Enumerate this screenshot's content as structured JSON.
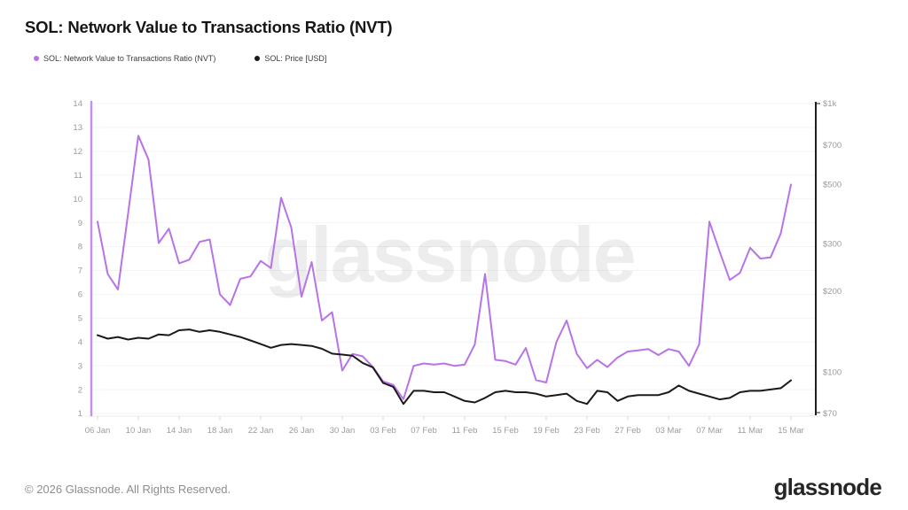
{
  "header": {
    "title": "SOL: Network Value to Transactions Ratio (NVT)"
  },
  "legend": {
    "items": [
      {
        "label": "SOL: Network Value to Transactions Ratio (NVT)",
        "color": "#b873e6"
      },
      {
        "label": "SOL: Price [USD]",
        "color": "#1a1a1a"
      }
    ]
  },
  "watermark": "glassnode",
  "footer": {
    "copyright": "© 2026 Glassnode. All Rights Reserved.",
    "brand": "glassnode"
  },
  "chart_data": {
    "type": "line",
    "title": "SOL: Network Value to Transactions Ratio (NVT)",
    "frequency": "daily",
    "date_range": "06 Jan – 15 Mar",
    "grid": "horizontal",
    "legend_position": "top-left",
    "x_tick_labels": [
      "06 Jan",
      "10 Jan",
      "14 Jan",
      "18 Jan",
      "22 Jan",
      "26 Jan",
      "30 Jan",
      "03 Feb",
      "07 Feb",
      "11 Feb",
      "15 Feb",
      "19 Feb",
      "23 Feb",
      "27 Feb",
      "03 Mar",
      "07 Mar",
      "11 Mar",
      "15 Mar"
    ],
    "x_tick_every_n_points": 4,
    "left_axis": {
      "scale": "linear",
      "min": 1,
      "max": 14,
      "tick_values": [
        1,
        2,
        3,
        4,
        5,
        6,
        7,
        8,
        9,
        10,
        11,
        12,
        13,
        14
      ],
      "color": "#c88fe9"
    },
    "right_axis": {
      "scale": "log",
      "min": 70,
      "max": 1000,
      "tick_labels": [
        "$1k",
        "$700",
        "$500",
        "$300",
        "$200",
        "$100",
        "$70"
      ],
      "tick_values": [
        1000,
        700,
        500,
        300,
        200,
        100,
        70
      ],
      "color": "#1f1f1f"
    },
    "series": [
      {
        "name": "SOL: Network Value to Transactions Ratio (NVT)",
        "axis": "left",
        "color": "#b873e6",
        "values": [
          9.05,
          6.85,
          6.2,
          9.4,
          12.65,
          11.65,
          8.15,
          8.75,
          7.3,
          7.45,
          8.2,
          8.3,
          6.0,
          5.55,
          6.65,
          6.75,
          7.4,
          7.1,
          10.05,
          8.8,
          5.9,
          7.35,
          4.9,
          5.25,
          2.8,
          3.5,
          3.4,
          2.95,
          2.35,
          2.2,
          1.6,
          3.0,
          3.1,
          3.05,
          3.1,
          3.0,
          3.05,
          3.9,
          6.85,
          3.25,
          3.2,
          3.05,
          3.75,
          2.4,
          2.3,
          4.0,
          4.9,
          3.5,
          2.9,
          3.25,
          2.95,
          3.35,
          3.6,
          3.65,
          3.7,
          3.45,
          3.7,
          3.6,
          3.0,
          3.9,
          9.05,
          7.8,
          6.6,
          6.9,
          7.95,
          7.5,
          7.55,
          8.55,
          10.6
        ]
      },
      {
        "name": "SOL: Price [USD]",
        "axis": "right",
        "color": "#1a1a1a",
        "values": [
          137,
          133,
          135,
          132,
          134,
          133,
          138,
          137,
          143,
          144,
          141,
          143,
          141,
          138,
          135,
          131,
          127,
          123,
          126,
          127,
          126,
          125,
          122,
          117,
          116,
          115,
          108,
          104,
          91,
          88,
          76,
          85,
          85,
          84,
          84,
          81,
          78,
          77,
          80,
          84,
          85,
          84,
          84,
          83,
          81,
          82,
          83,
          78,
          76,
          85,
          84,
          78,
          81,
          82,
          82,
          82,
          84,
          89,
          85,
          83,
          81,
          79,
          80,
          84,
          85,
          85,
          86,
          87,
          93
        ]
      }
    ]
  }
}
